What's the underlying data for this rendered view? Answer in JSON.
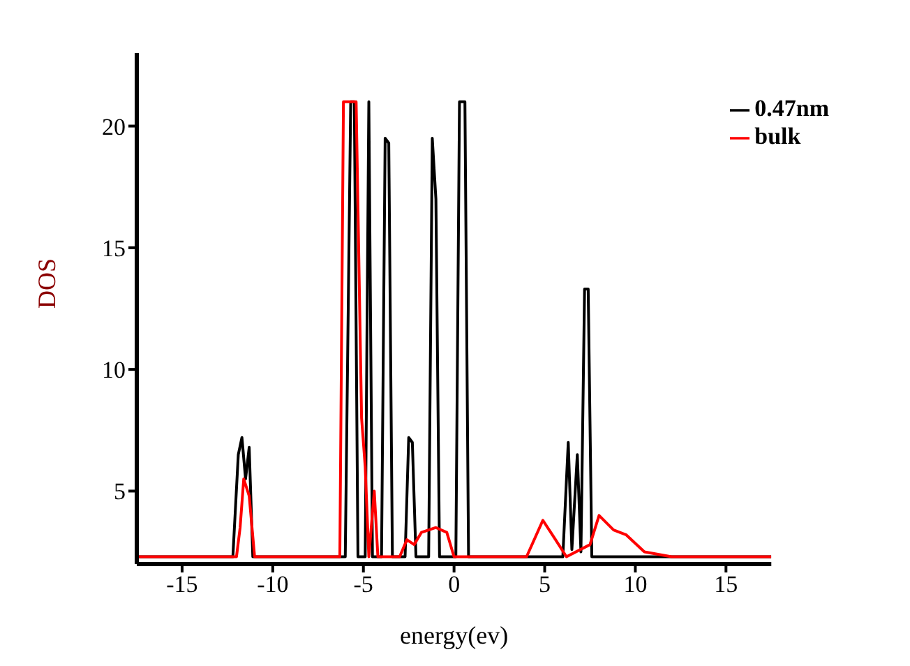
{
  "chart_data": {
    "type": "line",
    "xlabel": "energy(ev)",
    "ylabel": "DOS",
    "xlim": [
      -17.5,
      17.5
    ],
    "xticks": [
      -15,
      -10,
      -5,
      0,
      5,
      10,
      15
    ],
    "ylim": [
      2,
      23
    ],
    "yticks": [
      5,
      10,
      15,
      20
    ],
    "grid": false,
    "legend": "top right",
    "marker": "none",
    "line_style": "solid",
    "series": [
      {
        "name": "0.47nm",
        "color": "#000000",
        "x": [
          -17.5,
          -12.2,
          -11.9,
          -11.7,
          -11.5,
          -11.3,
          -11.1,
          -6,
          -5.7,
          -5.5,
          -5.3,
          -4.9,
          -4.7,
          -4.5,
          -4,
          -3.8,
          -3.6,
          -3.4,
          -2.7,
          -2.5,
          -2.3,
          -2.1,
          -1.4,
          -1.2,
          -1,
          -0.8,
          0.1,
          0.3,
          0.6,
          0.8,
          6,
          6.3,
          6.5,
          6.8,
          7,
          7.2,
          7.4,
          7.6,
          17.5
        ],
        "values": [
          2.3,
          2.3,
          6.5,
          7.2,
          5.5,
          6.8,
          2.3,
          2.3,
          21,
          21,
          2.3,
          2.3,
          21,
          2.3,
          2.3,
          19.5,
          19.3,
          2.3,
          2.3,
          7.2,
          7,
          2.3,
          2.3,
          19.5,
          17,
          2.3,
          2.3,
          21,
          21,
          2.3,
          2.3,
          7,
          2.6,
          6.5,
          2.5,
          13.3,
          13.3,
          2.3,
          2.3
        ]
      },
      {
        "name": "bulk",
        "color": "#ff0000",
        "x": [
          -17.5,
          -12,
          -11.8,
          -11.6,
          -11.3,
          -11,
          -6.3,
          -6.1,
          -5.7,
          -5.4,
          -5.1,
          -4.9,
          -4.7,
          -4.4,
          -4.2,
          -3,
          -2.6,
          -2.2,
          -1.8,
          -1,
          -0.4,
          0,
          4,
          4.9,
          5.6,
          6.2,
          7.5,
          8,
          8.8,
          9.5,
          10.5,
          12,
          17.5
        ],
        "values": [
          2.3,
          2.3,
          3.5,
          5.5,
          4.8,
          2.3,
          2.3,
          21,
          21,
          21,
          8,
          6,
          2.3,
          5,
          2.3,
          2.3,
          3,
          2.8,
          3.3,
          3.5,
          3.3,
          2.3,
          2.3,
          3.8,
          3,
          2.3,
          2.8,
          4,
          3.4,
          3.2,
          2.5,
          2.3,
          2.3
        ]
      }
    ]
  }
}
